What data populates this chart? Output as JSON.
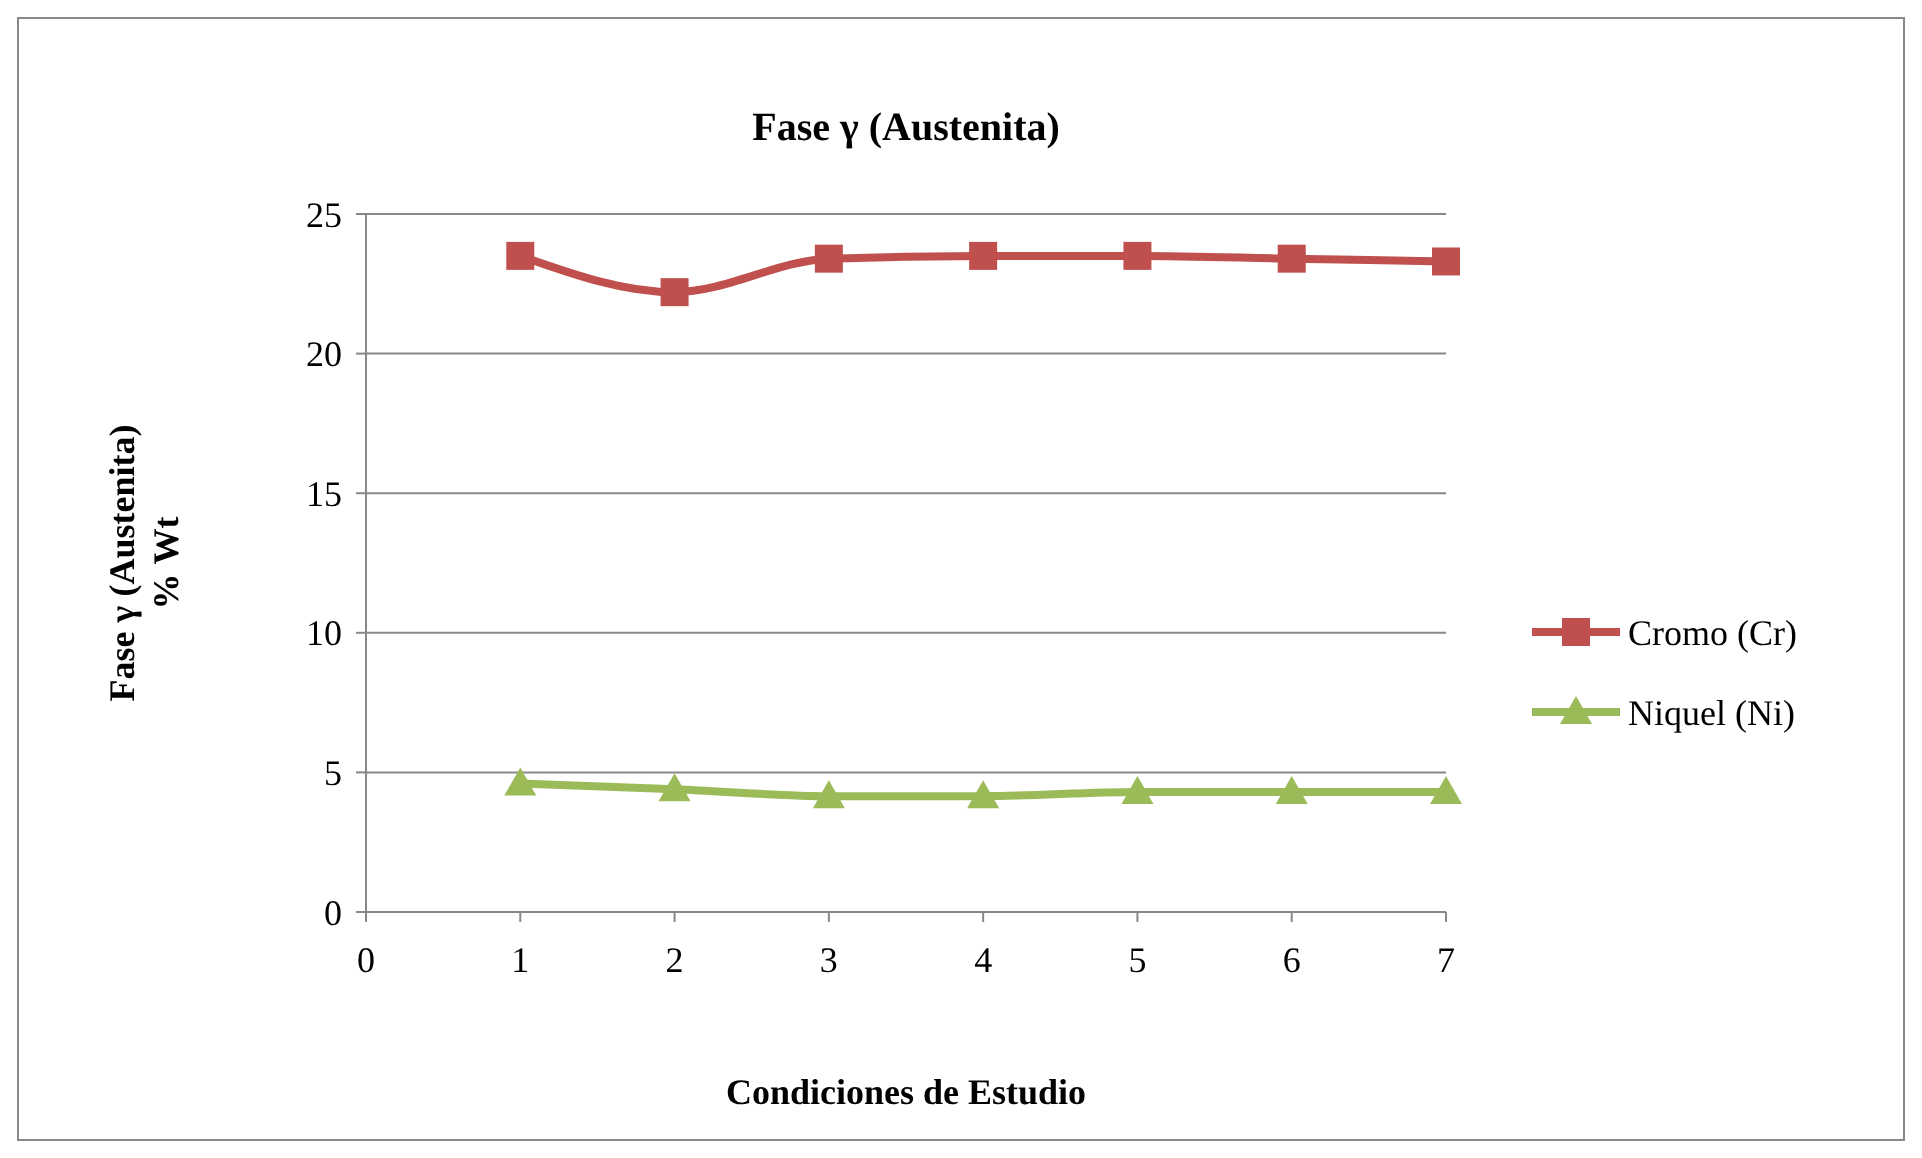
{
  "chart_data": {
    "type": "line",
    "title": "Fase γ (Austenita)",
    "xlabel": "Condiciones de Estudio",
    "ylabel": "Fase  γ (Austenita)\n% Wt",
    "x": [
      1,
      2,
      3,
      4,
      5,
      6,
      7
    ],
    "series": [
      {
        "name": "Cromo (Cr)",
        "color": "#c0504d",
        "marker": "square",
        "values": [
          23.5,
          22.2,
          23.4,
          23.5,
          23.5,
          23.4,
          23.3
        ]
      },
      {
        "name": "Niquel (Ni)",
        "color": "#9bbb59",
        "marker": "triangle",
        "values": [
          4.6,
          4.4,
          4.15,
          4.15,
          4.3,
          4.3,
          4.3
        ]
      }
    ],
    "xlim": [
      0,
      7
    ],
    "xticks": [
      0,
      1,
      2,
      3,
      4,
      5,
      6,
      7
    ],
    "ylim": [
      0,
      25
    ],
    "yticks": [
      0,
      5,
      10,
      15,
      20,
      25
    ],
    "grid": "y",
    "legend": "right",
    "line_style": "solid"
  }
}
